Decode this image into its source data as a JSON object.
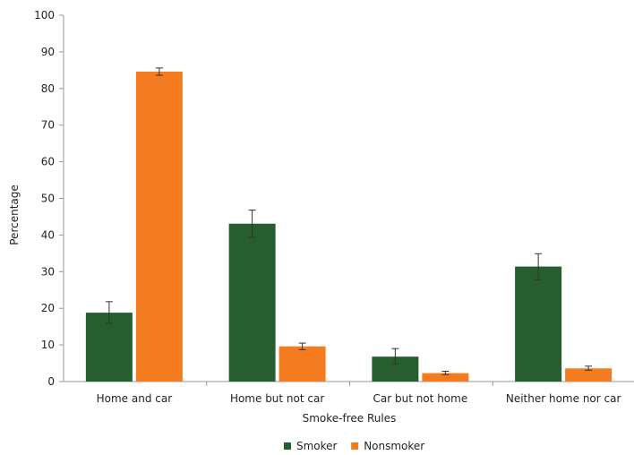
{
  "chart_data": {
    "type": "bar",
    "xlabel": "Smoke-free Rules",
    "ylabel": "Percentage",
    "ylim": [
      0,
      100
    ],
    "yticks": [
      0,
      10,
      20,
      30,
      40,
      50,
      60,
      70,
      80,
      90,
      100
    ],
    "categories": [
      "Home and car",
      "Home but not car",
      "Car but not home",
      "Neither home nor car"
    ],
    "series": [
      {
        "name": "Smoker",
        "color": "#265e2f",
        "values": [
          18.8,
          43.1,
          6.8,
          31.4
        ],
        "error_low": [
          15.9,
          39.4,
          4.8,
          27.8
        ],
        "error_high": [
          21.8,
          46.8,
          9.0,
          34.9
        ]
      },
      {
        "name": "Nonsmoker",
        "color": "#f47b20",
        "values": [
          84.6,
          9.6,
          2.3,
          3.6
        ],
        "error_low": [
          83.6,
          8.7,
          1.9,
          3.1
        ],
        "error_high": [
          85.6,
          10.5,
          2.8,
          4.2
        ]
      }
    ],
    "legend_position": "bottom-center",
    "grid": false
  }
}
